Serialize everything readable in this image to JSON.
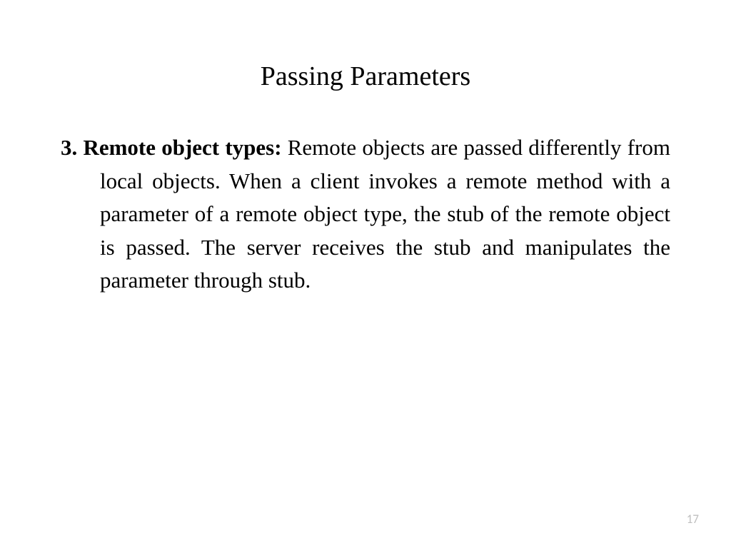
{
  "slide": {
    "title": "Passing Parameters",
    "item_number": "3.",
    "item_heading": "Remote object types:",
    "item_body": "Remote objects are passed differently from local objects. When a client invokes a remote method with a parameter of a remote object type, the stub of the remote object is passed. The server receives the stub and manipulates the parameter through stub.",
    "page_number": "17"
  },
  "style": {
    "background_color": "#ffffff",
    "text_color": "#000000",
    "page_number_color": "#bfbfbf",
    "font_family": "Times New Roman",
    "title_fontsize": 38,
    "body_fontsize": 31,
    "page_number_fontsize": 17
  }
}
